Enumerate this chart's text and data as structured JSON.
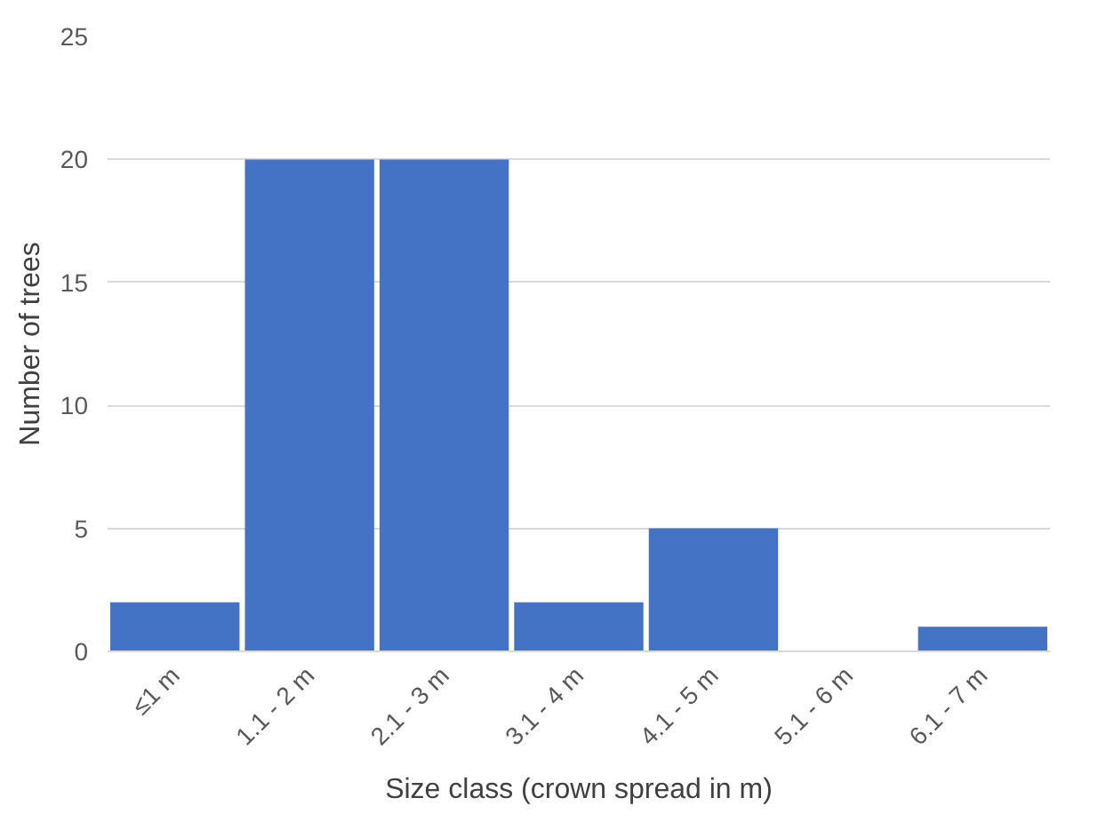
{
  "chart_data": {
    "type": "bar",
    "xlabel": "Size class (crown spread in m)",
    "ylabel": "Number of trees",
    "categories": [
      "≤1 m",
      "1.1 - 2 m",
      "2.1 - 3 m",
      "3.1 - 4 m",
      "4.1 - 5 m",
      "5.1 - 6 m",
      "6.1 - 7 m"
    ],
    "values": [
      2,
      20,
      20,
      2,
      5,
      0,
      1
    ],
    "color": "#4472c4",
    "ylim": [
      0,
      25
    ],
    "yticks": [
      0,
      5,
      10,
      15,
      20,
      25
    ],
    "grid": "y"
  }
}
